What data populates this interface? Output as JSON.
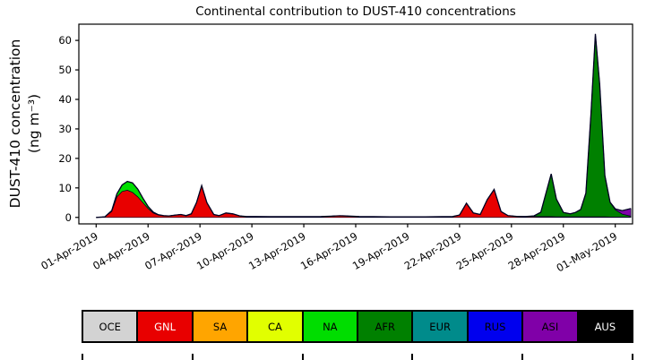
{
  "figure": {
    "title": "Continental contribution to DUST-410 concentrations"
  },
  "chart_data": {
    "type": "area",
    "stacked": true,
    "title": "Continental contribution to DUST-410 concentrations",
    "ylabel": "DUST-410 concentration (ng m⁻³)",
    "ylabel_line1": "DUST-410 concentration",
    "ylabel_line2": "(ng m⁻³)",
    "grid": false,
    "legend_position": "bottom",
    "xlim": [
      -1.0,
      31.0
    ],
    "ylim": [
      -2.2,
      65.5
    ],
    "yticks": [
      0,
      10,
      20,
      30,
      40,
      50,
      60
    ],
    "xtick_positions": [
      0,
      3,
      6,
      9,
      12,
      15,
      18,
      21,
      24,
      27,
      30
    ],
    "xtick_labels": [
      "01-Apr-2019",
      "04-Apr-2019",
      "07-Apr-2019",
      "10-Apr-2019",
      "13-Apr-2019",
      "16-Apr-2019",
      "19-Apr-2019",
      "22-Apr-2019",
      "25-Apr-2019",
      "28-Apr-2019",
      "01-May-2019"
    ],
    "x_unit": "days since 01-Apr-2019",
    "outline_color": "#000022",
    "x": [
      0,
      0.5,
      0.9,
      1.2,
      1.5,
      1.8,
      2.1,
      2.4,
      2.7,
      3.0,
      3.3,
      3.6,
      3.9,
      4.2,
      4.6,
      4.9,
      5.2,
      5.5,
      5.8,
      6.1,
      6.4,
      6.8,
      7.1,
      7.5,
      7.9,
      8.3,
      8.7,
      9.2,
      10,
      11,
      12,
      13,
      13.6,
      14.1,
      14.6,
      15.2,
      16,
      17,
      18,
      19,
      20,
      20.6,
      21.0,
      21.4,
      21.8,
      22.2,
      22.6,
      23.0,
      23.4,
      23.8,
      24.3,
      24.8,
      25.3,
      25.7,
      26.0,
      26.3,
      26.6,
      27.0,
      27.4,
      27.7,
      28.0,
      28.3,
      28.6,
      28.85,
      29.1,
      29.4,
      29.7,
      30.0,
      30.4,
      30.9
    ],
    "series": [
      {
        "name": "GNL",
        "color": "#e80000",
        "values": [
          0,
          0.2,
          2,
          7,
          8.8,
          9.2,
          8.5,
          7,
          5,
          3,
          1.5,
          0.8,
          0.6,
          0.5,
          0.8,
          1.0,
          0.6,
          1.2,
          5,
          10.8,
          5,
          1,
          0.6,
          1.5,
          1.2,
          0.5,
          0.3,
          0.3,
          0.25,
          0.25,
          0.25,
          0.3,
          0.4,
          0.55,
          0.45,
          0.3,
          0.25,
          0.2,
          0.2,
          0.2,
          0.25,
          0.3,
          0.8,
          4.8,
          1.5,
          1.0,
          6,
          9.5,
          2,
          0.6,
          0.35,
          0.3,
          0.3,
          0.25,
          0.25,
          0.25,
          0.2,
          0.2,
          0.2,
          0.2,
          0.2,
          0.2,
          0.2,
          0.2,
          0.2,
          0.2,
          0.15,
          0.1,
          0.1,
          0.1
        ]
      },
      {
        "name": "NA",
        "color": "#00dd00",
        "values": [
          0,
          0,
          0.3,
          1.0,
          2.2,
          3.0,
          3.2,
          2.6,
          1.5,
          0.7,
          0.3,
          0.1,
          0,
          0,
          0,
          0,
          0,
          0,
          0,
          0,
          0,
          0,
          0,
          0,
          0,
          0,
          0,
          0,
          0,
          0,
          0,
          0,
          0,
          0,
          0,
          0,
          0,
          0,
          0,
          0,
          0,
          0,
          0,
          0,
          0,
          0,
          0,
          0,
          0,
          0,
          0,
          0,
          0,
          0,
          0,
          0,
          0,
          0,
          0,
          0,
          0,
          0,
          0,
          0,
          0,
          0,
          0,
          0,
          0,
          0
        ]
      },
      {
        "name": "AFR",
        "color": "#008000",
        "values": [
          0,
          0,
          0,
          0,
          0,
          0,
          0,
          0,
          0,
          0,
          0,
          0,
          0,
          0,
          0,
          0,
          0,
          0,
          0,
          0,
          0,
          0,
          0,
          0,
          0,
          0,
          0,
          0,
          0,
          0,
          0,
          0,
          0,
          0,
          0,
          0,
          0,
          0,
          0,
          0,
          0,
          0,
          0,
          0,
          0,
          0,
          0,
          0,
          0,
          0,
          0,
          0,
          0.2,
          1.5,
          8,
          14.5,
          6,
          1.5,
          1.0,
          1.5,
          2.5,
          8,
          35,
          62,
          45,
          14,
          5,
          2.5,
          1.0,
          0.3
        ]
      },
      {
        "name": "ASI",
        "color": "#8000a8",
        "values": [
          0,
          0,
          0,
          0,
          0,
          0,
          0,
          0,
          0,
          0,
          0,
          0,
          0,
          0,
          0,
          0,
          0,
          0,
          0,
          0,
          0,
          0,
          0,
          0,
          0,
          0,
          0,
          0,
          0,
          0,
          0,
          0,
          0,
          0,
          0,
          0,
          0,
          0,
          0,
          0,
          0,
          0,
          0,
          0,
          0,
          0,
          0,
          0,
          0,
          0,
          0,
          0,
          0,
          0,
          0,
          0,
          0,
          0,
          0,
          0,
          0,
          0,
          0,
          0,
          0,
          0,
          0,
          0.3,
          1.2,
          2.6
        ]
      }
    ]
  },
  "legend": {
    "items": [
      {
        "label": "OCE",
        "color": "#d3d3d3",
        "text_color": "#000000"
      },
      {
        "label": "GNL",
        "color": "#e80000",
        "text_color": "#ffffff"
      },
      {
        "label": "SA",
        "color": "#ffa500",
        "text_color": "#000000"
      },
      {
        "label": "CA",
        "color": "#e1ff00",
        "text_color": "#000000"
      },
      {
        "label": "NA",
        "color": "#00dd00",
        "text_color": "#000000"
      },
      {
        "label": "AFR",
        "color": "#008000",
        "text_color": "#000000"
      },
      {
        "label": "EUR",
        "color": "#008b8b",
        "text_color": "#000000"
      },
      {
        "label": "RUS",
        "color": "#0000ee",
        "text_color": "#000000"
      },
      {
        "label": "ASI",
        "color": "#8000a8",
        "text_color": "#000000"
      },
      {
        "label": "AUS",
        "color": "#000000",
        "text_color": "#ffffff"
      }
    ]
  },
  "bottom_ruler": {
    "tick_count": 6
  }
}
